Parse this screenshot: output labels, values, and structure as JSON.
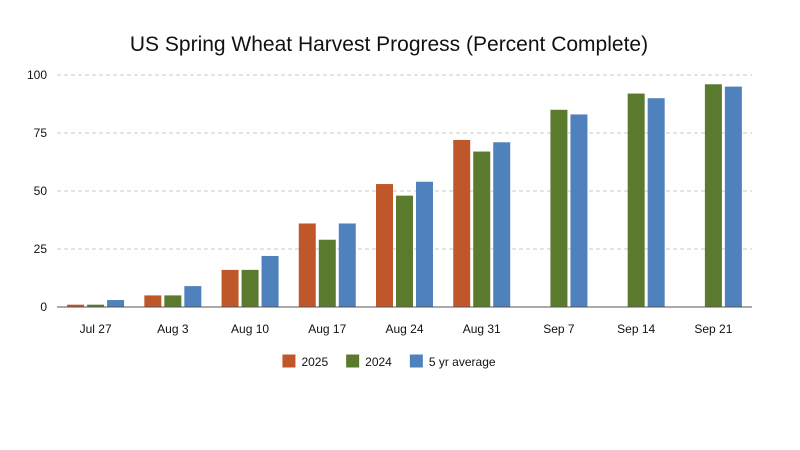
{
  "chart_data": {
    "type": "bar",
    "title": "US Spring Wheat Harvest Progress (Percent Complete)",
    "xlabel": "",
    "ylabel": "",
    "ylim": [
      0,
      100
    ],
    "yticks": [
      0,
      25,
      50,
      75,
      100
    ],
    "grid": "horizontal dashed",
    "legend_position": "bottom",
    "categories": [
      "Jul 27",
      "Aug 3",
      "Aug 10",
      "Aug 17",
      "Aug 24",
      "Aug 31",
      "Sep 7",
      "Sep 14",
      "Sep 21"
    ],
    "series": [
      {
        "name": "2025",
        "color": "#c0572a",
        "values": [
          1,
          5,
          16,
          36,
          53,
          72,
          null,
          null,
          null
        ]
      },
      {
        "name": "2024",
        "color": "#5a7a2e",
        "values": [
          1,
          5,
          16,
          29,
          48,
          67,
          85,
          92,
          96
        ]
      },
      {
        "name": "5 yr average",
        "color": "#4f81bd",
        "values": [
          3,
          9,
          22,
          36,
          54,
          71,
          83,
          90,
          95
        ]
      }
    ]
  }
}
